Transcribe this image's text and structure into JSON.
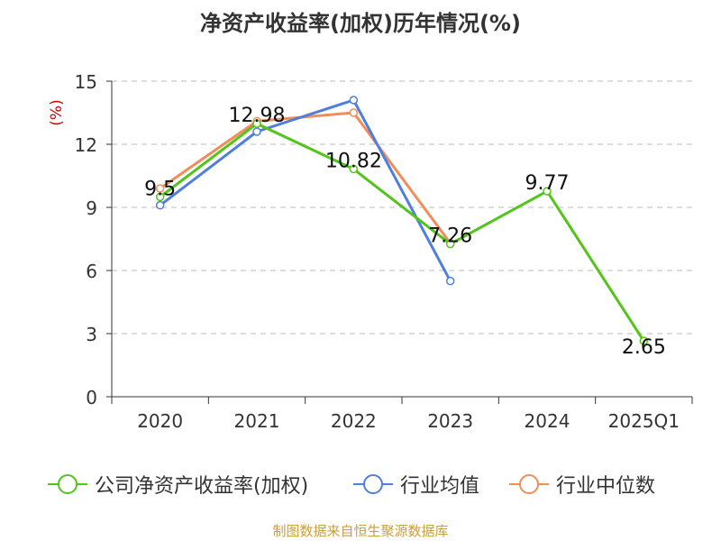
{
  "chart_data": {
    "type": "line",
    "title": "净资产收益率(加权)历年情况(%)",
    "ylabel": "(%)",
    "xlabel": "",
    "categories": [
      "2020",
      "2021",
      "2022",
      "2023",
      "2024",
      "2025Q1"
    ],
    "ylim": [
      0,
      15
    ],
    "yticks": [
      0,
      3,
      6,
      9,
      12,
      15
    ],
    "grid": true,
    "legend_position": "bottom",
    "series": [
      {
        "name": "公司净资产收益率(加权)",
        "color": "#52c41a",
        "values": [
          9.5,
          12.98,
          10.82,
          7.26,
          9.77,
          2.65
        ],
        "show_labels": true
      },
      {
        "name": "行业均值",
        "color": "#4e7fdc",
        "values": [
          9.1,
          12.6,
          14.1,
          5.5,
          null,
          null
        ],
        "show_labels": false
      },
      {
        "name": "行业中位数",
        "color": "#f28c5a",
        "values": [
          9.9,
          13.1,
          13.5,
          7.3,
          null,
          null
        ],
        "show_labels": false
      }
    ],
    "data_labels": [
      "9.5",
      "12.98",
      "10.82",
      "7.26",
      "9.77",
      "2.65"
    ]
  },
  "source": "制图数据来自恒生聚源数据库"
}
